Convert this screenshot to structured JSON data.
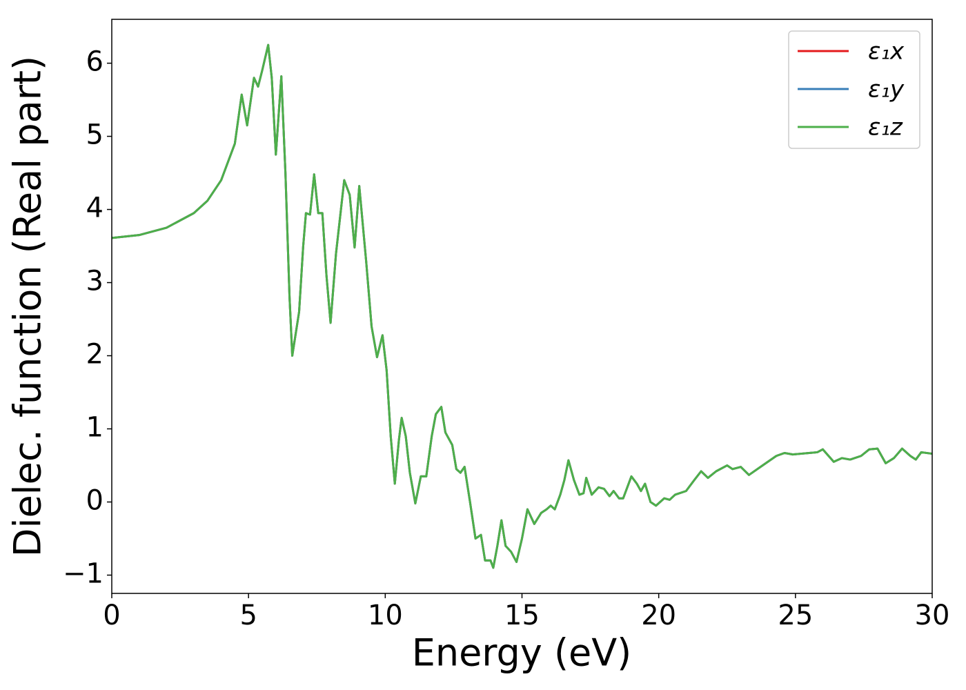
{
  "chart_data": {
    "type": "line",
    "xlabel": "Energy (eV)",
    "ylabel": "Dielec. function (Real part)",
    "xlim": [
      0,
      30
    ],
    "ylim": [
      -1.25,
      6.6
    ],
    "xticks": [
      0,
      5,
      10,
      15,
      20,
      25,
      30
    ],
    "yticks": [
      {
        "value": -1,
        "label": "−1"
      },
      0,
      1,
      2,
      3,
      4,
      5,
      6
    ],
    "legend": "upper right",
    "x": [
      0,
      1,
      2,
      3,
      3.5,
      4,
      4.5,
      4.75,
      4.95,
      5.2,
      5.35,
      5.5,
      5.72,
      5.85,
      6.0,
      6.2,
      6.35,
      6.5,
      6.6,
      6.85,
      7.0,
      7.1,
      7.25,
      7.4,
      7.55,
      7.7,
      7.85,
      8.0,
      8.2,
      8.5,
      8.7,
      8.88,
      9.05,
      9.3,
      9.5,
      9.7,
      9.9,
      10.05,
      10.2,
      10.35,
      10.5,
      10.6,
      10.75,
      10.9,
      11.1,
      11.3,
      11.5,
      11.7,
      11.85,
      12.05,
      12.2,
      12.45,
      12.6,
      12.75,
      12.9,
      13.1,
      13.3,
      13.5,
      13.65,
      13.85,
      13.95,
      14.1,
      14.25,
      14.4,
      14.6,
      14.8,
      15.0,
      15.2,
      15.45,
      15.7,
      15.9,
      16.05,
      16.2,
      16.4,
      16.55,
      16.7,
      16.9,
      17.1,
      17.25,
      17.35,
      17.55,
      17.8,
      18.0,
      18.2,
      18.35,
      18.55,
      18.7,
      19.0,
      19.2,
      19.35,
      19.5,
      19.7,
      19.9,
      20.2,
      20.4,
      20.6,
      21.0,
      21.3,
      21.55,
      21.8,
      22.1,
      22.5,
      22.7,
      23.0,
      23.3,
      23.8,
      24.3,
      24.6,
      24.9,
      25.2,
      25.5,
      25.8,
      26.0,
      26.4,
      26.7,
      27.0,
      27.4,
      27.7,
      28.0,
      28.3,
      28.6,
      28.9,
      29.2,
      29.4,
      29.6,
      30.0
    ],
    "series": [
      {
        "name": "ε₁x",
        "color": "#e41a1c",
        "values": [
          3.61,
          3.65,
          3.75,
          3.95,
          4.12,
          4.4,
          4.9,
          5.57,
          5.15,
          5.8,
          5.68,
          5.9,
          6.25,
          5.8,
          4.75,
          5.82,
          4.5,
          2.8,
          2.0,
          2.6,
          3.5,
          3.95,
          3.93,
          4.48,
          3.95,
          3.95,
          3.1,
          2.45,
          3.4,
          4.4,
          4.2,
          3.48,
          4.32,
          3.3,
          2.4,
          1.98,
          2.28,
          1.8,
          0.9,
          0.25,
          0.85,
          1.15,
          0.9,
          0.4,
          -0.02,
          0.35,
          0.35,
          0.9,
          1.2,
          1.3,
          0.95,
          0.78,
          0.45,
          0.4,
          0.48,
          0.0,
          -0.5,
          -0.45,
          -0.8,
          -0.8,
          -0.9,
          -0.6,
          -0.25,
          -0.6,
          -0.68,
          -0.82,
          -0.5,
          -0.1,
          -0.3,
          -0.15,
          -0.1,
          -0.05,
          -0.1,
          0.1,
          0.3,
          0.57,
          0.3,
          0.1,
          0.12,
          0.33,
          0.1,
          0.2,
          0.18,
          0.08,
          0.15,
          0.05,
          0.05,
          0.35,
          0.25,
          0.15,
          0.25,
          0.0,
          -0.05,
          0.05,
          0.03,
          0.1,
          0.15,
          0.3,
          0.42,
          0.33,
          0.42,
          0.5,
          0.45,
          0.48,
          0.37,
          0.5,
          0.63,
          0.67,
          0.65,
          0.66,
          0.67,
          0.68,
          0.72,
          0.55,
          0.6,
          0.58,
          0.63,
          0.72,
          0.73,
          0.53,
          0.6,
          0.73,
          0.63,
          0.58,
          0.68,
          0.66
        ]
      },
      {
        "name": "ε₁y",
        "color": "#377eb8",
        "values": [
          3.61,
          3.65,
          3.75,
          3.95,
          4.12,
          4.4,
          4.9,
          5.57,
          5.15,
          5.8,
          5.68,
          5.9,
          6.25,
          5.8,
          4.75,
          5.82,
          4.5,
          2.8,
          2.0,
          2.6,
          3.5,
          3.95,
          3.93,
          4.48,
          3.95,
          3.95,
          3.1,
          2.45,
          3.4,
          4.4,
          4.2,
          3.48,
          4.32,
          3.3,
          2.4,
          1.98,
          2.28,
          1.8,
          0.9,
          0.25,
          0.85,
          1.15,
          0.9,
          0.4,
          -0.02,
          0.35,
          0.35,
          0.9,
          1.2,
          1.3,
          0.95,
          0.78,
          0.45,
          0.4,
          0.48,
          0.0,
          -0.5,
          -0.45,
          -0.8,
          -0.8,
          -0.9,
          -0.6,
          -0.25,
          -0.6,
          -0.68,
          -0.82,
          -0.5,
          -0.1,
          -0.3,
          -0.15,
          -0.1,
          -0.05,
          -0.1,
          0.1,
          0.3,
          0.57,
          0.3,
          0.1,
          0.12,
          0.33,
          0.1,
          0.2,
          0.18,
          0.08,
          0.15,
          0.05,
          0.05,
          0.35,
          0.25,
          0.15,
          0.25,
          0.0,
          -0.05,
          0.05,
          0.03,
          0.1,
          0.15,
          0.3,
          0.42,
          0.33,
          0.42,
          0.5,
          0.45,
          0.48,
          0.37,
          0.5,
          0.63,
          0.67,
          0.65,
          0.66,
          0.67,
          0.68,
          0.72,
          0.55,
          0.6,
          0.58,
          0.63,
          0.72,
          0.73,
          0.53,
          0.6,
          0.73,
          0.63,
          0.58,
          0.68,
          0.66
        ]
      },
      {
        "name": "ε₁z",
        "color": "#4daf4a",
        "values": [
          3.61,
          3.65,
          3.75,
          3.95,
          4.12,
          4.4,
          4.9,
          5.57,
          5.15,
          5.8,
          5.68,
          5.9,
          6.25,
          5.8,
          4.75,
          5.82,
          4.5,
          2.8,
          2.0,
          2.6,
          3.5,
          3.95,
          3.93,
          4.48,
          3.95,
          3.95,
          3.1,
          2.45,
          3.4,
          4.4,
          4.2,
          3.48,
          4.32,
          3.3,
          2.4,
          1.98,
          2.28,
          1.8,
          0.9,
          0.25,
          0.85,
          1.15,
          0.9,
          0.4,
          -0.02,
          0.35,
          0.35,
          0.9,
          1.2,
          1.3,
          0.95,
          0.78,
          0.45,
          0.4,
          0.48,
          0.0,
          -0.5,
          -0.45,
          -0.8,
          -0.8,
          -0.9,
          -0.6,
          -0.25,
          -0.6,
          -0.68,
          -0.82,
          -0.5,
          -0.1,
          -0.3,
          -0.15,
          -0.1,
          -0.05,
          -0.1,
          0.1,
          0.3,
          0.57,
          0.3,
          0.1,
          0.12,
          0.33,
          0.1,
          0.2,
          0.18,
          0.08,
          0.15,
          0.05,
          0.05,
          0.35,
          0.25,
          0.15,
          0.25,
          0.0,
          -0.05,
          0.05,
          0.03,
          0.1,
          0.15,
          0.3,
          0.42,
          0.33,
          0.42,
          0.5,
          0.45,
          0.48,
          0.37,
          0.5,
          0.63,
          0.67,
          0.65,
          0.66,
          0.67,
          0.68,
          0.72,
          0.55,
          0.6,
          0.58,
          0.63,
          0.72,
          0.73,
          0.53,
          0.6,
          0.73,
          0.63,
          0.58,
          0.68,
          0.66
        ]
      }
    ]
  }
}
